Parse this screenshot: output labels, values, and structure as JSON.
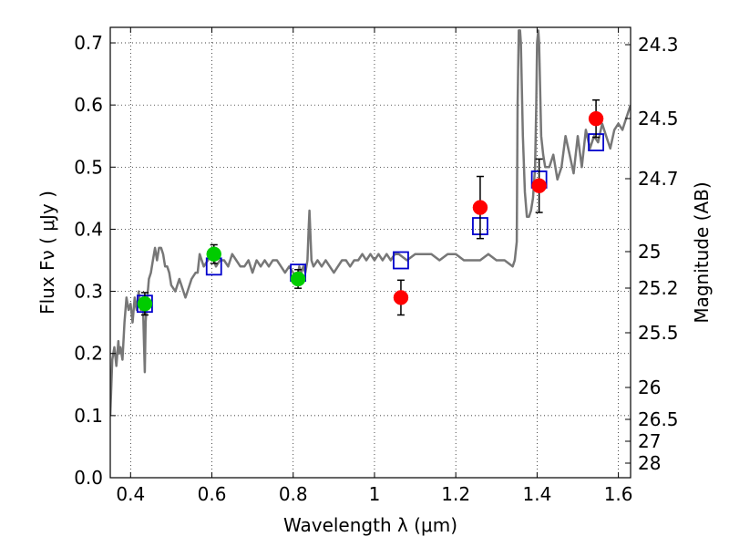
{
  "chart_data": {
    "type": "scatter",
    "xlabel": "Wavelength  λ (μm)",
    "ylabel": "Flux  Fν  ( μJy )",
    "y2label": "Magnitude (AB)",
    "xlim": [
      0.35,
      1.63
    ],
    "ylim": [
      0.0,
      0.725
    ],
    "grid": true,
    "x_ticks": [
      {
        "value": 0.4,
        "label": "0.4"
      },
      {
        "value": 0.6,
        "label": "0.6"
      },
      {
        "value": 0.8,
        "label": "0.8"
      },
      {
        "value": 1.0,
        "label": "1"
      },
      {
        "value": 1.2,
        "label": "1.2"
      },
      {
        "value": 1.4,
        "label": "1.4"
      },
      {
        "value": 1.6,
        "label": "1.6"
      }
    ],
    "y_ticks": [
      {
        "value": 0.0,
        "label": "0.0"
      },
      {
        "value": 0.1,
        "label": "0.1"
      },
      {
        "value": 0.2,
        "label": "0.2"
      },
      {
        "value": 0.3,
        "label": "0.3"
      },
      {
        "value": 0.4,
        "label": "0.4"
      },
      {
        "value": 0.5,
        "label": "0.5"
      },
      {
        "value": 0.6,
        "label": "0.6"
      },
      {
        "value": 0.7,
        "label": "0.7"
      }
    ],
    "mag_ticks": [
      {
        "label": "24.3"
      },
      {
        "label": "24.5"
      },
      {
        "label": "24.7"
      },
      {
        "label": "25"
      },
      {
        "label": "25.2"
      },
      {
        "label": "25.5"
      },
      {
        "label": "26"
      },
      {
        "label": "26.5"
      },
      {
        "label": "27"
      },
      {
        "label": "28"
      }
    ],
    "series": [
      {
        "color": "#777777",
        "marker": "line",
        "x": [
          0.35,
          0.355,
          0.36,
          0.365,
          0.37,
          0.372,
          0.375,
          0.38,
          0.385,
          0.39,
          0.395,
          0.4,
          0.405,
          0.41,
          0.415,
          0.42,
          0.425,
          0.43,
          0.432,
          0.435,
          0.437,
          0.44,
          0.445,
          0.45,
          0.455,
          0.46,
          0.465,
          0.47,
          0.475,
          0.48,
          0.485,
          0.49,
          0.495,
          0.5,
          0.51,
          0.52,
          0.53,
          0.535,
          0.54,
          0.55,
          0.56,
          0.565,
          0.57,
          0.58,
          0.59,
          0.6,
          0.61,
          0.62,
          0.63,
          0.64,
          0.65,
          0.66,
          0.67,
          0.68,
          0.69,
          0.7,
          0.71,
          0.72,
          0.73,
          0.74,
          0.75,
          0.76,
          0.77,
          0.78,
          0.79,
          0.8,
          0.81,
          0.815,
          0.82,
          0.825,
          0.83,
          0.835,
          0.838,
          0.84,
          0.845,
          0.85,
          0.86,
          0.87,
          0.88,
          0.89,
          0.9,
          0.91,
          0.92,
          0.93,
          0.94,
          0.95,
          0.96,
          0.97,
          0.98,
          0.99,
          1.0,
          1.01,
          1.02,
          1.03,
          1.04,
          1.05,
          1.06,
          1.08,
          1.1,
          1.12,
          1.14,
          1.16,
          1.18,
          1.2,
          1.22,
          1.24,
          1.26,
          1.28,
          1.3,
          1.32,
          1.34,
          1.345,
          1.35,
          1.352,
          1.355,
          1.358,
          1.36,
          1.365,
          1.37,
          1.375,
          1.38,
          1.385,
          1.39,
          1.395,
          1.398,
          1.4,
          1.403,
          1.405,
          1.41,
          1.415,
          1.42,
          1.43,
          1.44,
          1.45,
          1.46,
          1.47,
          1.48,
          1.49,
          1.5,
          1.51,
          1.52,
          1.53,
          1.54,
          1.55,
          1.56,
          1.57,
          1.58,
          1.59,
          1.6,
          1.61,
          1.62,
          1.63
        ],
        "y": [
          0.1,
          0.19,
          0.21,
          0.18,
          0.22,
          0.2,
          0.21,
          0.19,
          0.25,
          0.29,
          0.27,
          0.28,
          0.25,
          0.29,
          0.27,
          0.3,
          0.27,
          0.29,
          0.24,
          0.17,
          0.25,
          0.28,
          0.32,
          0.33,
          0.35,
          0.37,
          0.35,
          0.37,
          0.37,
          0.36,
          0.34,
          0.34,
          0.33,
          0.31,
          0.3,
          0.32,
          0.3,
          0.29,
          0.3,
          0.32,
          0.33,
          0.33,
          0.36,
          0.34,
          0.35,
          0.36,
          0.34,
          0.35,
          0.35,
          0.34,
          0.36,
          0.35,
          0.34,
          0.34,
          0.35,
          0.33,
          0.35,
          0.34,
          0.35,
          0.34,
          0.35,
          0.35,
          0.34,
          0.33,
          0.34,
          0.33,
          0.32,
          0.34,
          0.33,
          0.34,
          0.33,
          0.35,
          0.4,
          0.43,
          0.35,
          0.34,
          0.35,
          0.34,
          0.35,
          0.34,
          0.33,
          0.34,
          0.35,
          0.35,
          0.34,
          0.35,
          0.35,
          0.36,
          0.35,
          0.36,
          0.35,
          0.36,
          0.35,
          0.36,
          0.35,
          0.36,
          0.36,
          0.35,
          0.36,
          0.36,
          0.36,
          0.35,
          0.36,
          0.36,
          0.35,
          0.35,
          0.35,
          0.36,
          0.35,
          0.35,
          0.34,
          0.35,
          0.38,
          0.6,
          0.72,
          0.72,
          0.7,
          0.55,
          0.46,
          0.42,
          0.42,
          0.43,
          0.45,
          0.5,
          0.6,
          0.7,
          0.72,
          0.7,
          0.55,
          0.52,
          0.5,
          0.5,
          0.52,
          0.48,
          0.5,
          0.55,
          0.52,
          0.49,
          0.55,
          0.5,
          0.56,
          0.53,
          0.55,
          0.54,
          0.57,
          0.55,
          0.53,
          0.56,
          0.57,
          0.56,
          0.58,
          0.6
        ]
      },
      {
        "color": "#ff0000",
        "marker": "circle",
        "x": [
          1.065,
          1.26,
          1.405,
          1.545
        ],
        "y": [
          0.29,
          0.435,
          0.47,
          0.578
        ],
        "yerr": [
          0.028,
          0.05,
          0.043,
          0.03
        ]
      },
      {
        "color": "#00cc00",
        "marker": "circle",
        "x": [
          0.435,
          0.605,
          0.812
        ],
        "y": [
          0.28,
          0.36,
          0.32
        ],
        "yerr": [
          0.018,
          0.015,
          0.015
        ]
      },
      {
        "color": "#0000cc",
        "marker": "square",
        "x": [
          0.435,
          0.605,
          0.812,
          1.065,
          1.26,
          1.405,
          1.545
        ],
        "y": [
          0.28,
          0.34,
          0.33,
          0.35,
          0.405,
          0.48,
          0.54
        ]
      }
    ]
  }
}
